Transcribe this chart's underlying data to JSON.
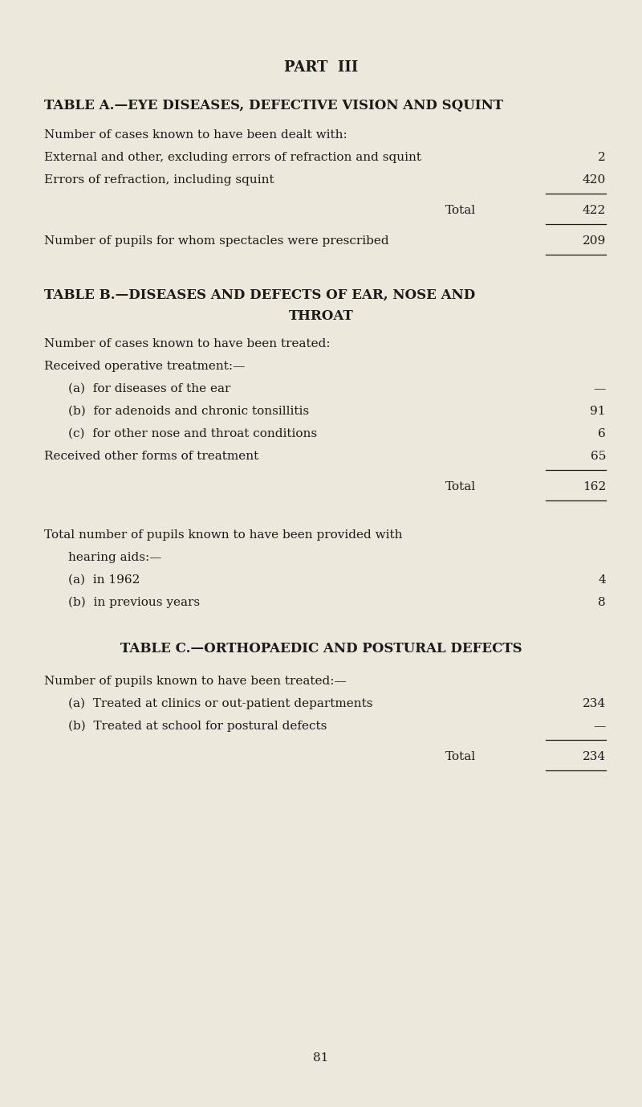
{
  "bg_color": "#ede8dc",
  "text_color": "#1a1a1a",
  "page_num": "81",
  "part_title": "PART  III",
  "fig_width": 8.0,
  "fig_height": 13.78,
  "dpi": 100
}
